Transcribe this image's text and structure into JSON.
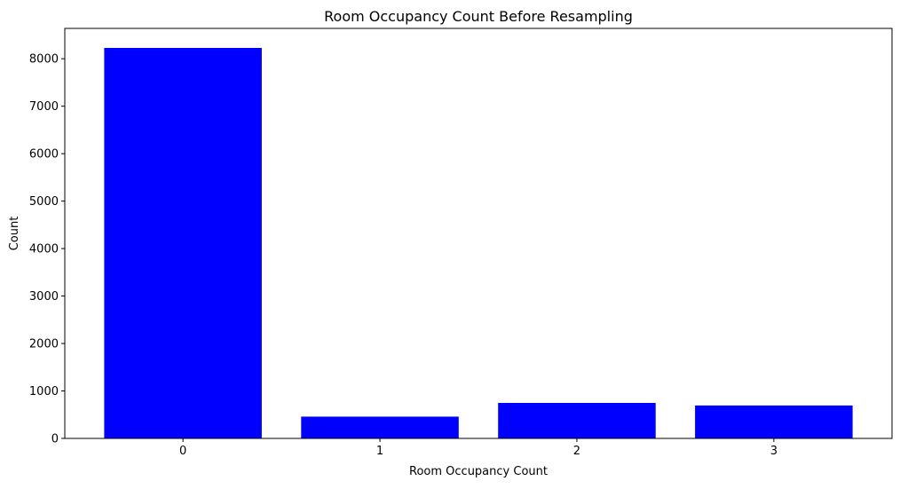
{
  "chart_data": {
    "type": "bar",
    "title": "Room Occupancy Count Before Resampling",
    "xlabel": "Room Occupancy Count",
    "ylabel": "Count",
    "categories": [
      "0",
      "1",
      "2",
      "3"
    ],
    "values": [
      8228,
      459,
      748,
      694
    ],
    "ylim": [
      0,
      8639
    ],
    "yticks": [
      0,
      1000,
      2000,
      3000,
      4000,
      5000,
      6000,
      7000,
      8000
    ],
    "ytick_labels": [
      "0",
      "1000",
      "2000",
      "3000",
      "4000",
      "5000",
      "6000",
      "7000",
      "8000"
    ],
    "bar_color": "#0000ff",
    "grid": false,
    "legend": "none"
  }
}
